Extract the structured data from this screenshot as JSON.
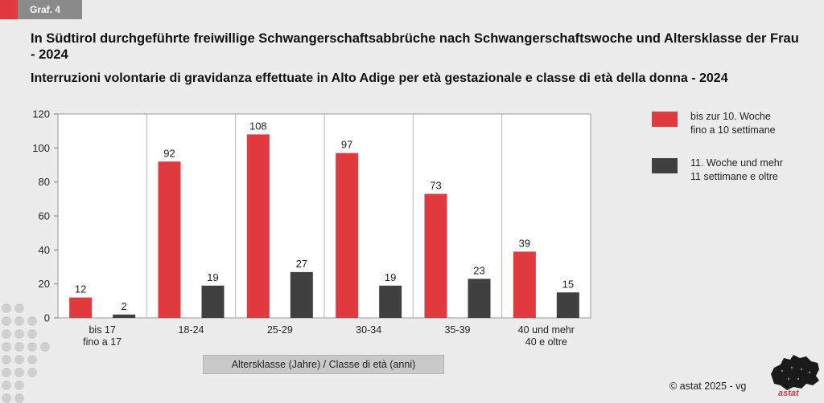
{
  "badge": "Graf. 4",
  "title": "In Südtirol durchgeführte freiwillige Schwangerschaftsabbrüche nach Schwangerschaftswoche und Altersklasse der Frau - 2024",
  "subtitle": "Interruzioni volontarie di gravidanza effettuate in Alto Adige per età gestazionale e classe di età della donna - 2024",
  "copyright": "©  astat 2025 - vg",
  "logo_text": "astat",
  "colors": {
    "series1": "#e03a3e",
    "series2": "#404040",
    "background": "#ececec",
    "plot": "#ffffff"
  },
  "chart_data": {
    "type": "bar",
    "categories": [
      [
        "bis 17",
        "fino a 17"
      ],
      [
        "18-24"
      ],
      [
        "25-29"
      ],
      [
        "30-34"
      ],
      [
        "35-39"
      ],
      [
        "40 und mehr",
        "40 e oltre"
      ]
    ],
    "series": [
      {
        "name": [
          "bis zur 10. Woche",
          "fino a 10 settimane"
        ],
        "values": [
          12,
          92,
          108,
          97,
          73,
          39
        ],
        "color": "#e03a3e"
      },
      {
        "name": [
          "11. Woche und mehr",
          "11 settimane e oltre"
        ],
        "values": [
          2,
          19,
          27,
          19,
          23,
          15
        ],
        "color": "#404040"
      }
    ],
    "ylim": [
      0,
      120
    ],
    "yticks": [
      0,
      20,
      40,
      60,
      80,
      100,
      120
    ],
    "xlabel": "Altersklasse (Jahre) / Classe di età (anni)",
    "ylabel": "",
    "grid": "vertical-separators",
    "legend": "right"
  }
}
